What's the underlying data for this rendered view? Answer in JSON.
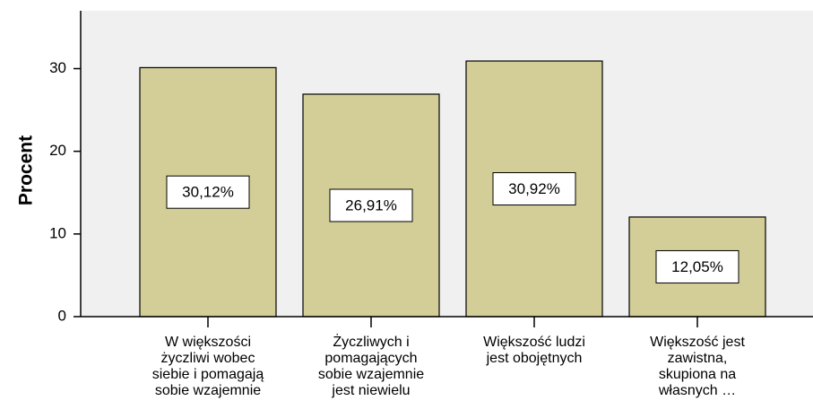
{
  "chart_data": {
    "type": "bar",
    "y_label": "Procent",
    "categories": [
      "W większości\nżyczliwi wobec\nsiebie i pomagają\nsobie wzajemnie",
      "Życzliwych i\npomagających\nsobie wzajemnie\njest niewielu",
      "Większość ludzi\njest obojętnych",
      "Większość jest\nzawistna,\nskupiona na\nwłasnych …"
    ],
    "values": [
      30.12,
      26.91,
      30.92,
      12.05
    ],
    "value_labels": [
      "30,12%",
      "26,91%",
      "30,92%",
      "12,05%"
    ],
    "color": "#d3ce97",
    "ylim": [
      0,
      37
    ],
    "yticks": [
      0,
      10,
      20,
      30
    ],
    "grid": false
  }
}
